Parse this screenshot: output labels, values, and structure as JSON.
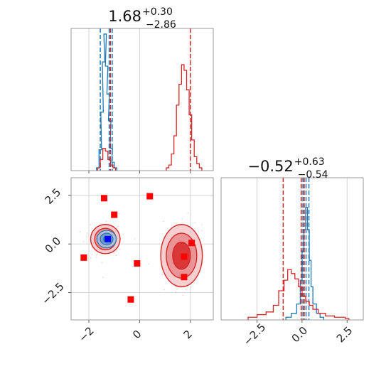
{
  "titles": {
    "x": {
      "value": "1.68",
      "sup": "+0.30",
      "sub": "−2.86"
    },
    "y": {
      "value": "−0.52",
      "sup": "+0.63",
      "sub": "−0.54"
    }
  },
  "colors": {
    "blue": "#1f77b4",
    "red": "#d62728",
    "square_red": "#ff0000",
    "square_blue": "#0000ff"
  },
  "chart_data": [
    {
      "panel": "marginal-x",
      "type": "histogram",
      "xlim": [
        -2.7,
        2.9
      ],
      "grid": true,
      "title": "1.68 +0.30 −2.86",
      "series": [
        {
          "name": "",
          "color": "#1f77b4",
          "bins": [
            [
              -1.65,
              0.02
            ],
            [
              -1.55,
              0.15
            ],
            [
              -1.48,
              0.42
            ],
            [
              -1.42,
              0.78
            ],
            [
              -1.36,
              0.98
            ],
            [
              -1.3,
              0.75
            ],
            [
              -1.24,
              0.55
            ],
            [
              -1.18,
              0.36
            ],
            [
              -1.12,
              0.16
            ],
            [
              -1.05,
              0.06
            ],
            [
              -0.95,
              0.02
            ]
          ],
          "quantile_lines": [
            -1.55,
            -1.2,
            -1.08
          ]
        },
        {
          "name": "",
          "color": "#d62728",
          "bins": [
            [
              -1.6,
              0.02
            ],
            [
              -1.5,
              0.08
            ],
            [
              -1.4,
              0.16
            ],
            [
              -1.3,
              0.14
            ],
            [
              -1.2,
              0.08
            ],
            [
              -1.1,
              0.04
            ],
            [
              -1.0,
              0.02
            ],
            [
              1.1,
              0.02
            ],
            [
              1.2,
              0.04
            ],
            [
              1.3,
              0.12
            ],
            [
              1.4,
              0.25
            ],
            [
              1.5,
              0.47
            ],
            [
              1.6,
              0.62
            ],
            [
              1.7,
              0.76
            ],
            [
              1.8,
              0.72
            ],
            [
              1.9,
              0.58
            ],
            [
              2.0,
              0.4
            ],
            [
              2.1,
              0.22
            ],
            [
              2.2,
              0.1
            ],
            [
              2.3,
              0.05
            ],
            [
              2.4,
              0.02
            ]
          ],
          "quantile_lines": [
            -1.15,
            2.0
          ]
        }
      ]
    },
    {
      "panel": "marginal-y",
      "type": "histogram",
      "xlim": [
        -4.5,
        3.4
      ],
      "xticks": [
        -2.5,
        0.0,
        2.5
      ],
      "xticklabels": [
        "−2.5",
        "0.0",
        "2.5"
      ],
      "grid": true,
      "title": "−0.52 +0.63 −0.54",
      "series": [
        {
          "name": "",
          "color": "#1f77b4",
          "bins": [
            [
              -0.9,
              0.02
            ],
            [
              -0.6,
              0.05
            ],
            [
              -0.3,
              0.12
            ],
            [
              -0.1,
              0.3
            ],
            [
              0.0,
              0.52
            ],
            [
              0.1,
              0.68
            ],
            [
              0.2,
              0.85
            ],
            [
              0.3,
              0.68
            ],
            [
              0.4,
              0.45
            ],
            [
              0.5,
              0.25
            ],
            [
              0.6,
              0.12
            ],
            [
              0.8,
              0.05
            ],
            [
              1.0,
              0.02
            ]
          ],
          "quantile_lines": [
            0.05,
            0.22,
            0.38
          ]
        },
        {
          "name": "",
          "color": "#d62728",
          "bins": [
            [
              -3.0,
              0.02
            ],
            [
              -2.5,
              0.04
            ],
            [
              -2.0,
              0.06
            ],
            [
              -1.6,
              0.11
            ],
            [
              -1.3,
              0.22
            ],
            [
              -1.0,
              0.3
            ],
            [
              -0.8,
              0.38
            ],
            [
              -0.6,
              0.35
            ],
            [
              -0.4,
              0.31
            ],
            [
              -0.2,
              0.25
            ],
            [
              0.0,
              0.18
            ],
            [
              0.2,
              0.14
            ],
            [
              0.4,
              0.11
            ],
            [
              0.6,
              0.08
            ],
            [
              0.9,
              0.05
            ],
            [
              1.3,
              0.03
            ],
            [
              1.8,
              0.02
            ],
            [
              2.4,
              0.01
            ]
          ],
          "quantile_lines": [
            -1.05,
            -0.05,
            0.12
          ]
        }
      ]
    },
    {
      "panel": "joint",
      "type": "scatter",
      "xlim": [
        -2.7,
        2.9
      ],
      "ylim": [
        -3.9,
        3.4
      ],
      "xticks": [
        -2,
        0,
        2
      ],
      "xticklabels": [
        "−2",
        "0",
        "2"
      ],
      "yticks": [
        -2.5,
        0.0,
        2.5
      ],
      "yticklabels": [
        "−2.5",
        "0.0",
        "2.5"
      ],
      "grid": true,
      "contours_blue": [
        {
          "cx": -1.3,
          "cy": 0.25,
          "rx": [
            0.12,
            0.25,
            0.38
          ],
          "ry": [
            0.15,
            0.3,
            0.45
          ]
        }
      ],
      "contours_red": [
        {
          "cx": -1.35,
          "cy": 0.25,
          "rx": [
            0.22,
            0.42,
            0.58
          ],
          "ry": [
            0.28,
            0.55,
            0.75
          ]
        },
        {
          "cx": 1.65,
          "cy": -0.6,
          "rx": [
            0.35,
            0.6,
            0.82
          ],
          "ry": [
            0.7,
            1.15,
            1.6
          ]
        }
      ],
      "red_squares": [
        [
          -1.4,
          2.35
        ],
        [
          -1.0,
          1.5
        ],
        [
          0.4,
          2.45
        ],
        [
          -2.2,
          -0.7
        ],
        [
          -0.1,
          -1.0
        ],
        [
          -0.35,
          -2.85
        ],
        [
          1.75,
          -0.65
        ],
        [
          2.05,
          0.05
        ],
        [
          1.75,
          -1.7
        ]
      ],
      "blue_square": [
        -1.25,
        0.25
      ]
    }
  ]
}
